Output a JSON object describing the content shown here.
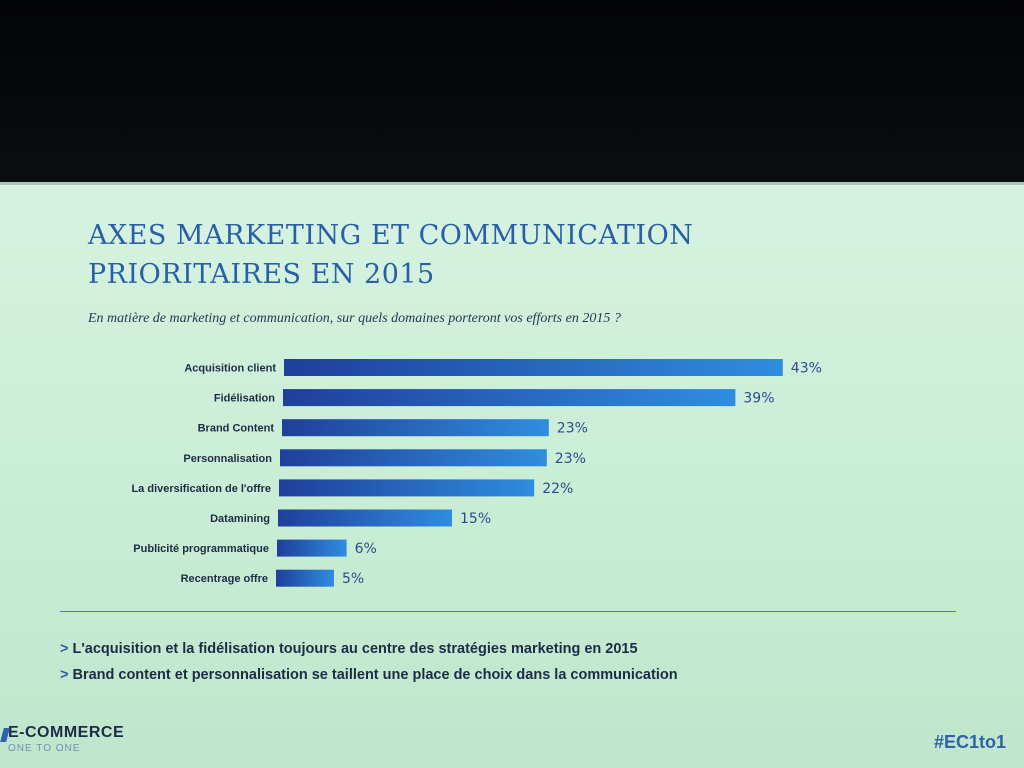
{
  "slide": {
    "title_line1": "AXES MARKETING ET COMMUNICATION",
    "title_line2": "PRIORITAIRES EN 2015",
    "subtitle": "En matière de marketing et communication, sur quels domaines porteront vos efforts en 2015 ?",
    "bullets": [
      {
        "marker": ">",
        "text": "L'acquisition et la fidélisation toujours au centre des stratégies marketing en 2015"
      },
      {
        "marker": ">",
        "text": "Brand content et personnalisation se taillent une place de choix dans la communication"
      }
    ],
    "brand_name": "E-COMMERCE",
    "brand_tagline": "ONE TO ONE",
    "hashtag": "#EC1to1"
  },
  "colors": {
    "title": "#2a5fa8",
    "bar_dark": "#1f3f9a",
    "bar_light": "#2f8de0",
    "accent": "#2e62ab"
  },
  "chart_data": {
    "type": "bar",
    "orientation": "horizontal",
    "categories": [
      "Acquisition client",
      "Fidélisation",
      "Brand Content",
      "Personnalisation",
      "La diversification de l'offre",
      "Datamining",
      "Publicité programmatique",
      "Recentrage offre"
    ],
    "values": [
      43,
      39,
      23,
      23,
      22,
      15,
      6,
      5
    ],
    "value_labels": [
      "43%",
      "39%",
      "23%",
      "23%",
      "22%",
      "15%",
      "6%",
      "5%"
    ],
    "unit": "%",
    "grid": false,
    "legend": "none"
  }
}
